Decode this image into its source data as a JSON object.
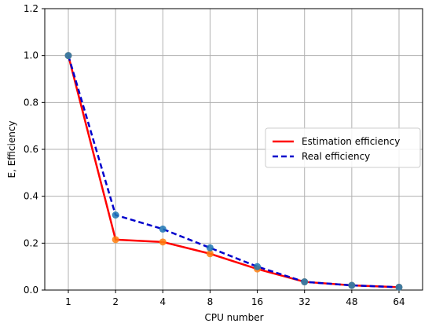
{
  "chart_data": {
    "type": "line",
    "title": "",
    "xlabel": "CPU number",
    "ylabel": "E, Efficiency",
    "categories": [
      "1",
      "2",
      "4",
      "8",
      "16",
      "32",
      "48",
      "64"
    ],
    "ylim": [
      0.0,
      1.2
    ],
    "yticks": [
      "0.0",
      "0.2",
      "0.4",
      "0.6",
      "0.8",
      "1.0",
      "1.2"
    ],
    "grid": true,
    "legend_position": "center-right",
    "series": [
      {
        "name": "Estimation efficiency",
        "values": [
          1.0,
          0.215,
          0.205,
          0.155,
          0.09,
          0.035,
          0.02,
          0.012
        ],
        "color": "#ff0000",
        "marker_color": "#ff7f0e",
        "style": "solid"
      },
      {
        "name": "Real efficiency",
        "values": [
          1.0,
          0.32,
          0.26,
          0.18,
          0.1,
          0.035,
          0.02,
          0.012
        ],
        "color": "#0000cc",
        "marker_color": "#1f77b4",
        "style": "dashed"
      }
    ]
  }
}
